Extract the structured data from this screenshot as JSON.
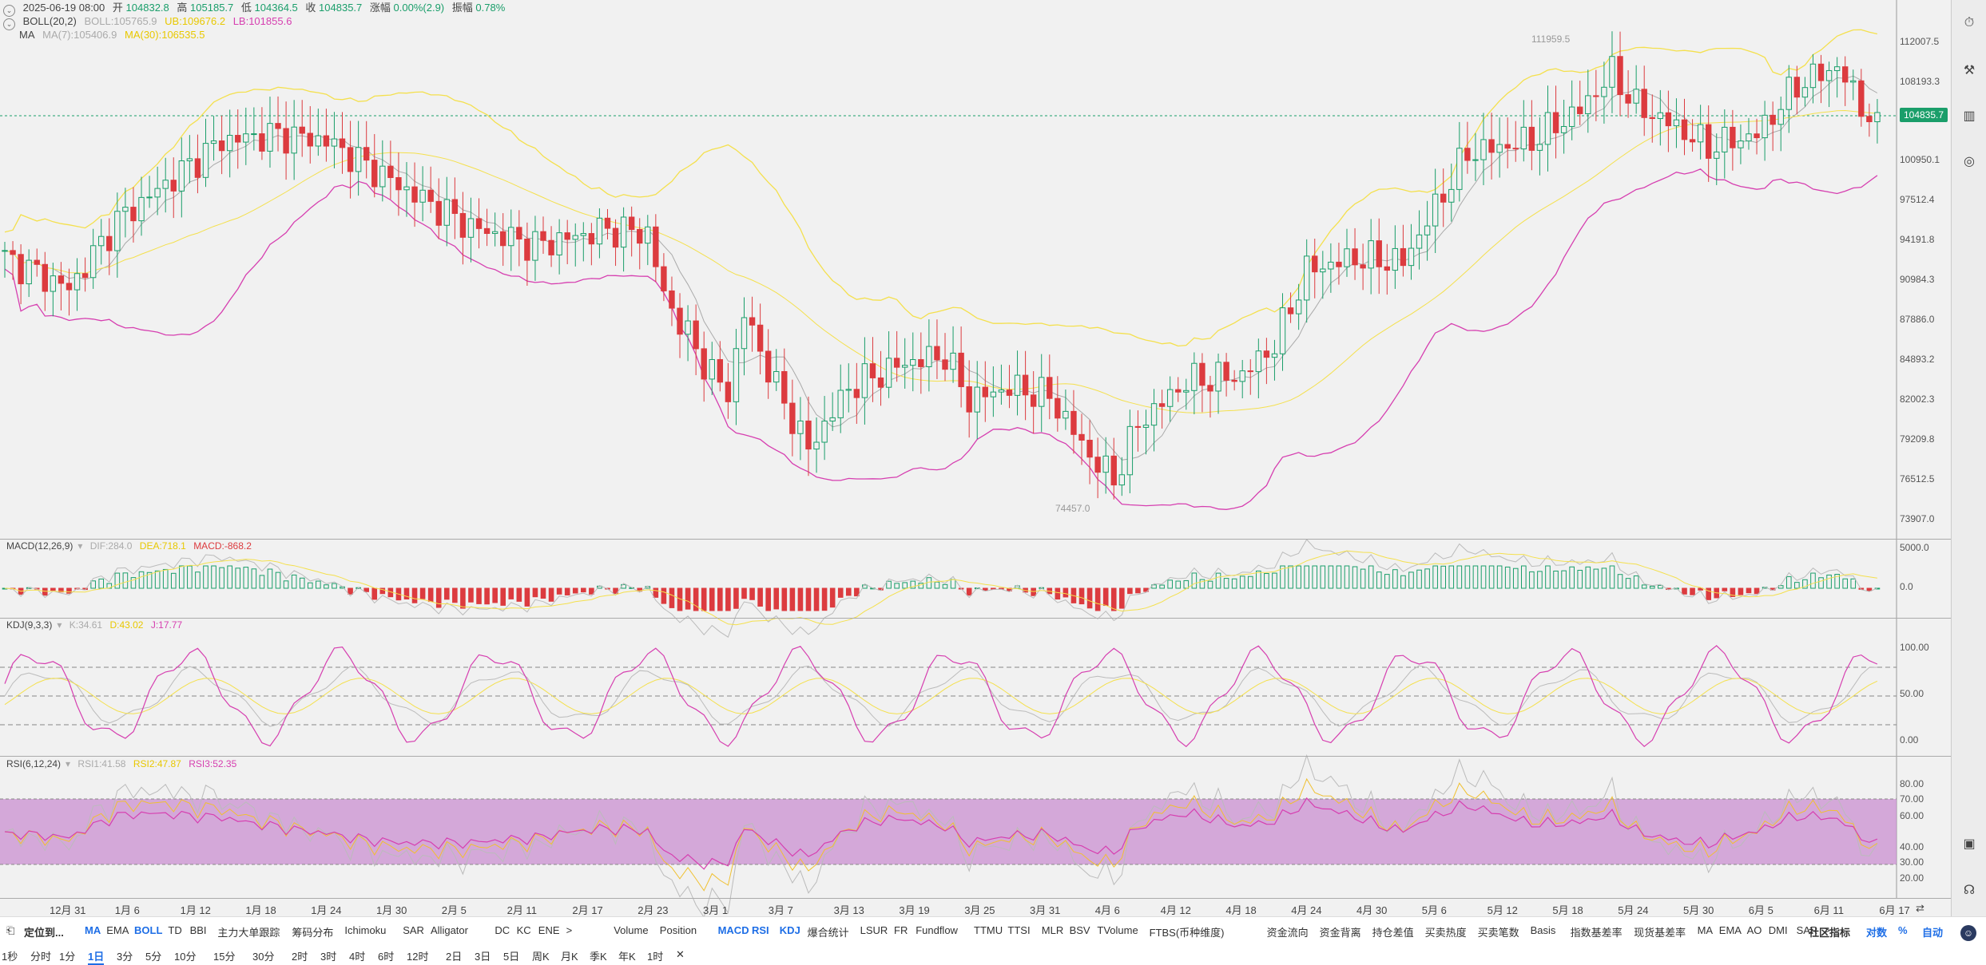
{
  "ohlc": {
    "date": "2025-06-19 08:00",
    "open_label": "开",
    "open": "104832.8",
    "high_label": "高",
    "high": "105185.7",
    "low_label": "低",
    "low": "104364.5",
    "close_label": "收",
    "close": "104835.7",
    "change_label": "涨幅",
    "change": "0.00%(2.9)",
    "amp_label": "振幅",
    "amp": "0.78%"
  },
  "boll": {
    "name": "BOLL(20,2)",
    "boll": "BOLL:105765.9",
    "ub": "UB:109676.2",
    "lb": "LB:101855.6"
  },
  "ma": {
    "name": "MA",
    "ma7": "MA(7):105406.9",
    "ma30": "MA(30):106535.5"
  },
  "macd": {
    "name": "MACD(12,26,9)",
    "dif": "DIF:284.0",
    "dea": "DEA:718.1",
    "macd": "MACD:-868.2"
  },
  "kdj": {
    "name": "KDJ(9,3,3)",
    "k": "K:34.61",
    "d": "D:43.02",
    "j": "J:17.77"
  },
  "rsi": {
    "name": "RSI(6,12,24)",
    "rsi1": "RSI1:41.58",
    "rsi2": "RSI2:47.87",
    "rsi3": "RSI3:52.35"
  },
  "price_axis": [
    "112007.5",
    "108193.3",
    "104835.7",
    "100950.1",
    "97512.4",
    "94191.8",
    "90984.3",
    "87886.0",
    "84893.2",
    "82002.3",
    "79209.8",
    "76512.5",
    "73907.0"
  ],
  "current_price": "104835.7",
  "marker_high": "111959.5",
  "marker_low": "74457.0",
  "macd_axis": [
    "5000.0",
    "0.0"
  ],
  "kdj_axis": [
    "100.00",
    "50.00",
    "0.00"
  ],
  "rsi_axis": [
    "80.00",
    "70.00",
    "60.00",
    "40.00",
    "30.00",
    "20.00"
  ],
  "dates": [
    "12月 31",
    "1月 6",
    "1月 12",
    "1月 18",
    "1月 24",
    "1月 30",
    "2月 5",
    "2月 11",
    "2月 17",
    "2月 23",
    "3月 1",
    "3月 7",
    "3月 13",
    "3月 19",
    "3月 25",
    "3月 31",
    "4月 6",
    "4月 12",
    "4月 18",
    "4月 24",
    "4月 30",
    "5月 6",
    "5月 12",
    "5月 18",
    "5月 24",
    "5月 30",
    "6月 5",
    "6月 11",
    "6月 17"
  ],
  "indicators": {
    "locate": "定位到...",
    "items": [
      "MA",
      "EMA",
      "BOLL",
      "TD",
      "BBI",
      "主力大单跟踪",
      "筹码分布",
      "Ichimoku",
      "SAR",
      "Alligator",
      "DC",
      "KC",
      "ENE",
      ">",
      "Volume",
      "Position",
      "MACD",
      "RSI",
      "KDJ",
      "爆合统计",
      "LSUR",
      "FR",
      "Fundflow",
      "TTMU",
      "TTSI",
      "MLR",
      "BSV",
      "TVolume",
      "FTBS(币种维度)",
      "资金流向",
      "资金背离",
      "持仓差值",
      "买卖热度",
      "买卖笔数",
      "Basis",
      "指数基差率",
      "现货基差率",
      "MA",
      "EMA",
      "AO",
      "DMI",
      "SAR",
      ">"
    ],
    "community": "社区指标",
    "log": "对数",
    "pct": "%",
    "auto": "自动"
  },
  "timeframes": [
    "1秒",
    "分时",
    "1分",
    "1日",
    "3分",
    "5分",
    "10分",
    "15分",
    "30分",
    "2时",
    "3时",
    "4时",
    "6时",
    "12时",
    "2日",
    "3日",
    "5日",
    "周K",
    "月K",
    "季K",
    "年K",
    "1时",
    "✕"
  ],
  "colors": {
    "up": "#1a9e6a",
    "down": "#dc3b3f",
    "boll_ub": "#f4e04d",
    "boll_lb": "#d63fb0",
    "ma7": "#aaaaaa",
    "ma30": "#f4e04d",
    "rsi_band": "#c98fd0",
    "accent": "#1e6ee6"
  },
  "icons": [
    "stopwatch-icon",
    "tools-icon",
    "candles-icon",
    "indicator-icon",
    "layout-icon",
    "headset-icon",
    "avatar-icon"
  ]
}
